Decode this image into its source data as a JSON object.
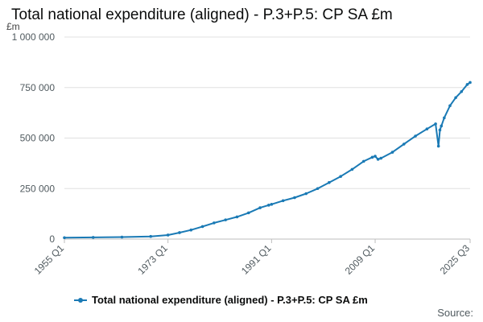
{
  "colors": {
    "series": "#1a7ab5",
    "grid": "#e0e0e0",
    "axis": "#bdbdbd"
  },
  "chart_data": {
    "type": "line",
    "title": "Total national expenditure (aligned) - P.3+P.5: CP SA £m",
    "ylabel": "£m",
    "xlabel": "",
    "ylim": [
      0,
      1000000
    ],
    "yticks": [
      0,
      250000,
      500000,
      750000,
      1000000
    ],
    "ytick_labels": [
      "0",
      "250 000",
      "500 000",
      "750 000",
      "1 000 000"
    ],
    "xlim": [
      1955.0,
      2025.5
    ],
    "xticks": [
      1955.0,
      1973.0,
      1991.0,
      2009.0,
      2025.5
    ],
    "xtick_labels": [
      "1955 Q1",
      "1973 Q1",
      "1991 Q1",
      "2009 Q1",
      "2025 Q3"
    ],
    "grid": true,
    "legend_position": "bottom",
    "series": [
      {
        "name": "Total national expenditure (aligned) - P.3+P.5: CP SA £m",
        "x": [
          1955.0,
          1960,
          1965,
          1970,
          1973,
          1975,
          1977,
          1979,
          1981,
          1983,
          1985,
          1987,
          1989,
          1990.5,
          1991,
          1993,
          1995,
          1997,
          1999,
          2001,
          2003,
          2005,
          2007,
          2008.5,
          2009.0,
          2009.5,
          2010,
          2012,
          2014,
          2016,
          2018,
          2019.5,
          2020.0,
          2020.25,
          2020.5,
          2021,
          2022,
          2023,
          2024,
          2025,
          2025.5
        ],
        "y": [
          7000,
          8500,
          10000,
          13000,
          20000,
          32000,
          45000,
          62000,
          80000,
          95000,
          110000,
          130000,
          155000,
          168000,
          172000,
          190000,
          205000,
          225000,
          250000,
          280000,
          310000,
          345000,
          385000,
          405000,
          410000,
          395000,
          400000,
          430000,
          470000,
          510000,
          545000,
          570000,
          460000,
          540000,
          560000,
          600000,
          660000,
          700000,
          730000,
          765000,
          775000
        ]
      }
    ]
  },
  "legend": {
    "label": "Total national expenditure (aligned) - P.3+P.5: CP SA £m"
  },
  "source_label": "Source:"
}
